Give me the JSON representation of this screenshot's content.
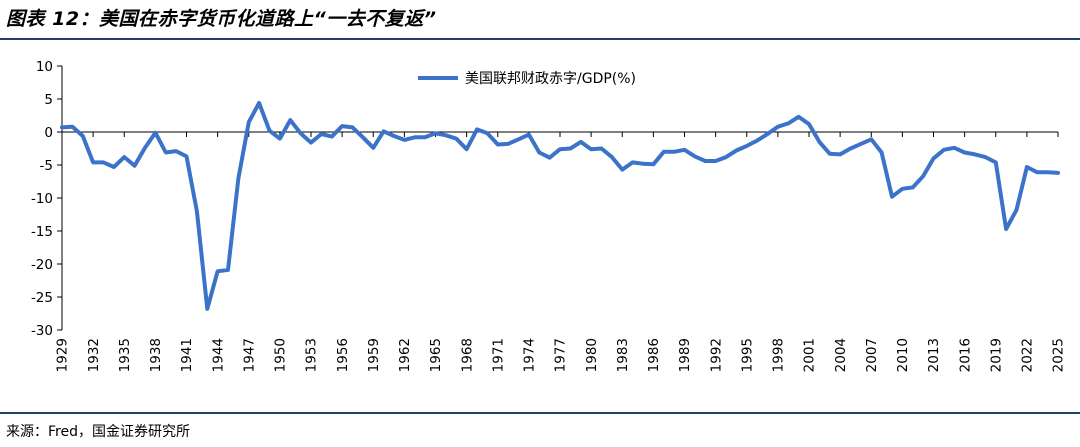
{
  "header": {
    "title": "图表 12：美国在赤字货币化道路上“一去不复返”"
  },
  "footer": {
    "source": "来源：Fred，国金证券研究所"
  },
  "colors": {
    "series": "#3a73c9",
    "rule": "#1f3f6e",
    "axis": "#000000"
  },
  "chart_data": {
    "type": "line",
    "title": "",
    "xlabel": "",
    "ylabel": "",
    "ylim": [
      -30,
      10
    ],
    "yticks": [
      10,
      5,
      0,
      -5,
      -10,
      -15,
      -20,
      -25,
      -30
    ],
    "xlim": [
      1929,
      2025
    ],
    "xticks": [
      1929,
      1932,
      1935,
      1938,
      1941,
      1944,
      1947,
      1950,
      1953,
      1956,
      1959,
      1962,
      1965,
      1968,
      1971,
      1974,
      1977,
      1980,
      1983,
      1986,
      1989,
      1992,
      1995,
      1998,
      2001,
      2004,
      2007,
      2010,
      2013,
      2016,
      2019,
      2022,
      2025
    ],
    "legend": "top-center",
    "series": [
      {
        "name": "美国联邦财政赤字/GDP(%)",
        "x": [
          1929,
          1930,
          1931,
          1932,
          1933,
          1934,
          1935,
          1936,
          1937,
          1938,
          1939,
          1940,
          1941,
          1942,
          1943,
          1944,
          1945,
          1946,
          1947,
          1948,
          1949,
          1950,
          1951,
          1952,
          1953,
          1954,
          1955,
          1956,
          1957,
          1958,
          1959,
          1960,
          1961,
          1962,
          1963,
          1964,
          1965,
          1966,
          1967,
          1968,
          1969,
          1970,
          1971,
          1972,
          1973,
          1974,
          1975,
          1976,
          1977,
          1978,
          1979,
          1980,
          1981,
          1982,
          1983,
          1984,
          1985,
          1986,
          1987,
          1988,
          1989,
          1990,
          1991,
          1992,
          1993,
          1994,
          1995,
          1996,
          1997,
          1998,
          1999,
          2000,
          2001,
          2002,
          2003,
          2004,
          2005,
          2006,
          2007,
          2008,
          2009,
          2010,
          2011,
          2012,
          2013,
          2014,
          2015,
          2016,
          2017,
          2018,
          2019,
          2020,
          2021,
          2022,
          2023,
          2024,
          2025
        ],
        "values": [
          0.7,
          0.8,
          -0.6,
          -4.6,
          -4.6,
          -5.3,
          -3.8,
          -5.1,
          -2.4,
          -0.1,
          -3.1,
          -2.9,
          -3.7,
          -12.0,
          -26.8,
          -21.1,
          -20.9,
          -7.0,
          1.5,
          4.4,
          0.2,
          -1.0,
          1.8,
          -0.2,
          -1.6,
          -0.3,
          -0.7,
          0.9,
          0.7,
          -0.8,
          -2.4,
          0.1,
          -0.6,
          -1.2,
          -0.8,
          -0.8,
          -0.2,
          -0.5,
          -1.0,
          -2.6,
          0.4,
          -0.2,
          -1.9,
          -1.8,
          -1.1,
          -0.4,
          -3.1,
          -3.9,
          -2.6,
          -2.5,
          -1.5,
          -2.6,
          -2.5,
          -3.8,
          -5.7,
          -4.6,
          -4.8,
          -4.9,
          -3.0,
          -3.0,
          -2.7,
          -3.7,
          -4.4,
          -4.4,
          -3.8,
          -2.8,
          -2.1,
          -1.3,
          -0.3,
          0.8,
          1.3,
          2.3,
          1.2,
          -1.5,
          -3.3,
          -3.4,
          -2.5,
          -1.8,
          -1.1,
          -3.1,
          -9.8,
          -8.6,
          -8.4,
          -6.7,
          -4.0,
          -2.7,
          -2.4,
          -3.1,
          -3.4,
          -3.8,
          -4.6,
          -14.7,
          -11.8,
          -5.3,
          -6.1,
          -6.1,
          -6.2
        ]
      }
    ]
  }
}
